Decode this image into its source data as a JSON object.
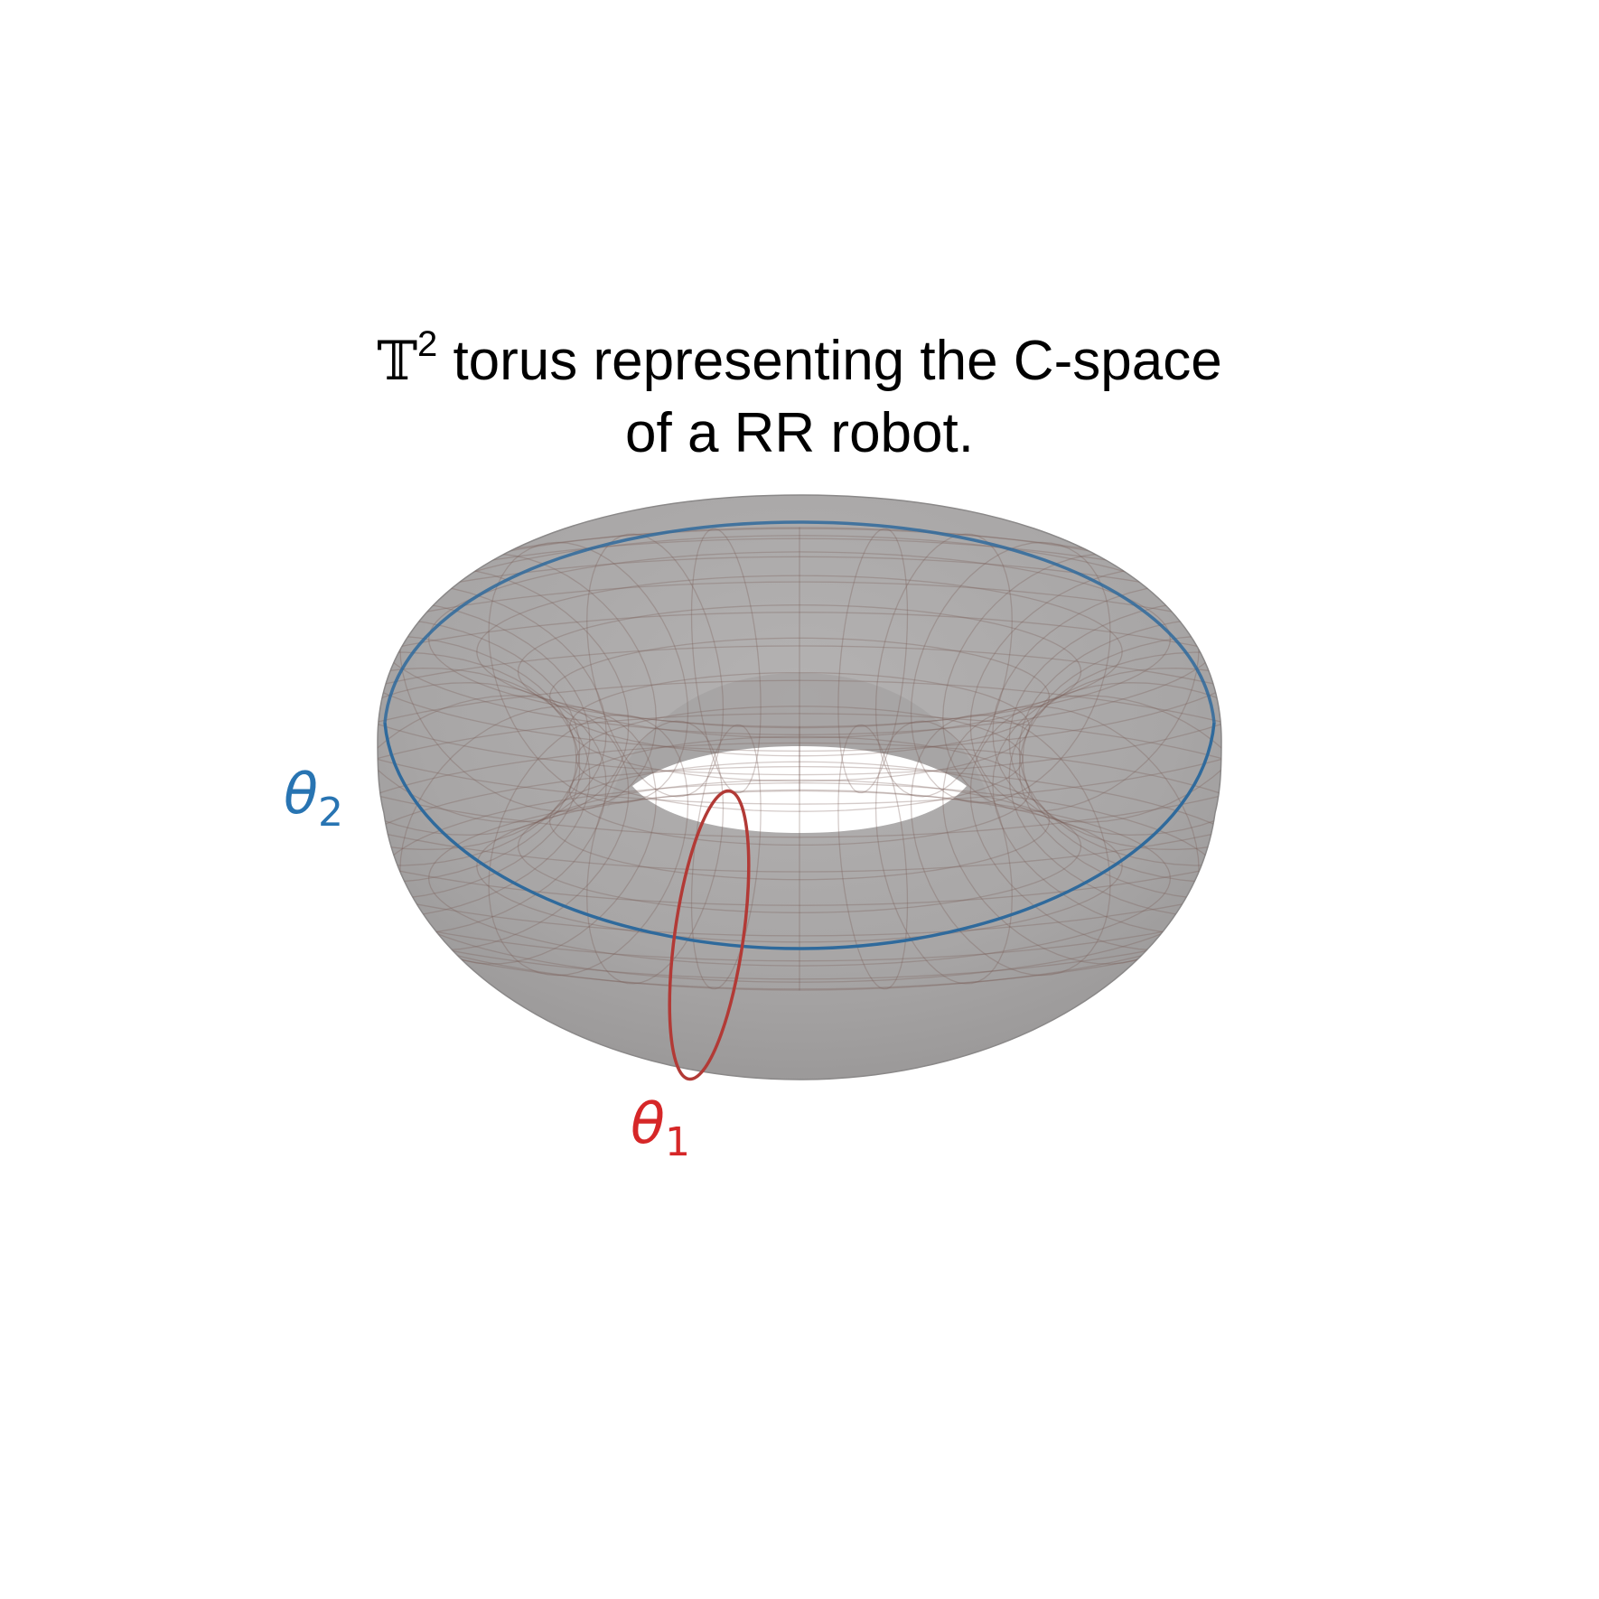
{
  "title": {
    "symbol": "𝕋",
    "superscript": "2",
    "line1_rest": " torus representing the C-space",
    "line2": "of a RR robot."
  },
  "labels": {
    "theta2": {
      "symbol": "θ",
      "subscript": "2",
      "color": "#2874b2"
    },
    "theta1": {
      "symbol": "θ",
      "subscript": "1",
      "color": "#d62728"
    }
  },
  "colors": {
    "surface": "#a9a7a7",
    "grid": "#7a5c58",
    "theta2_curve": "#2f6a9c",
    "theta1_curve": "#b23a36"
  },
  "surface": {
    "type": "torus",
    "meridian_lines": 36,
    "parallel_lines": 24
  }
}
